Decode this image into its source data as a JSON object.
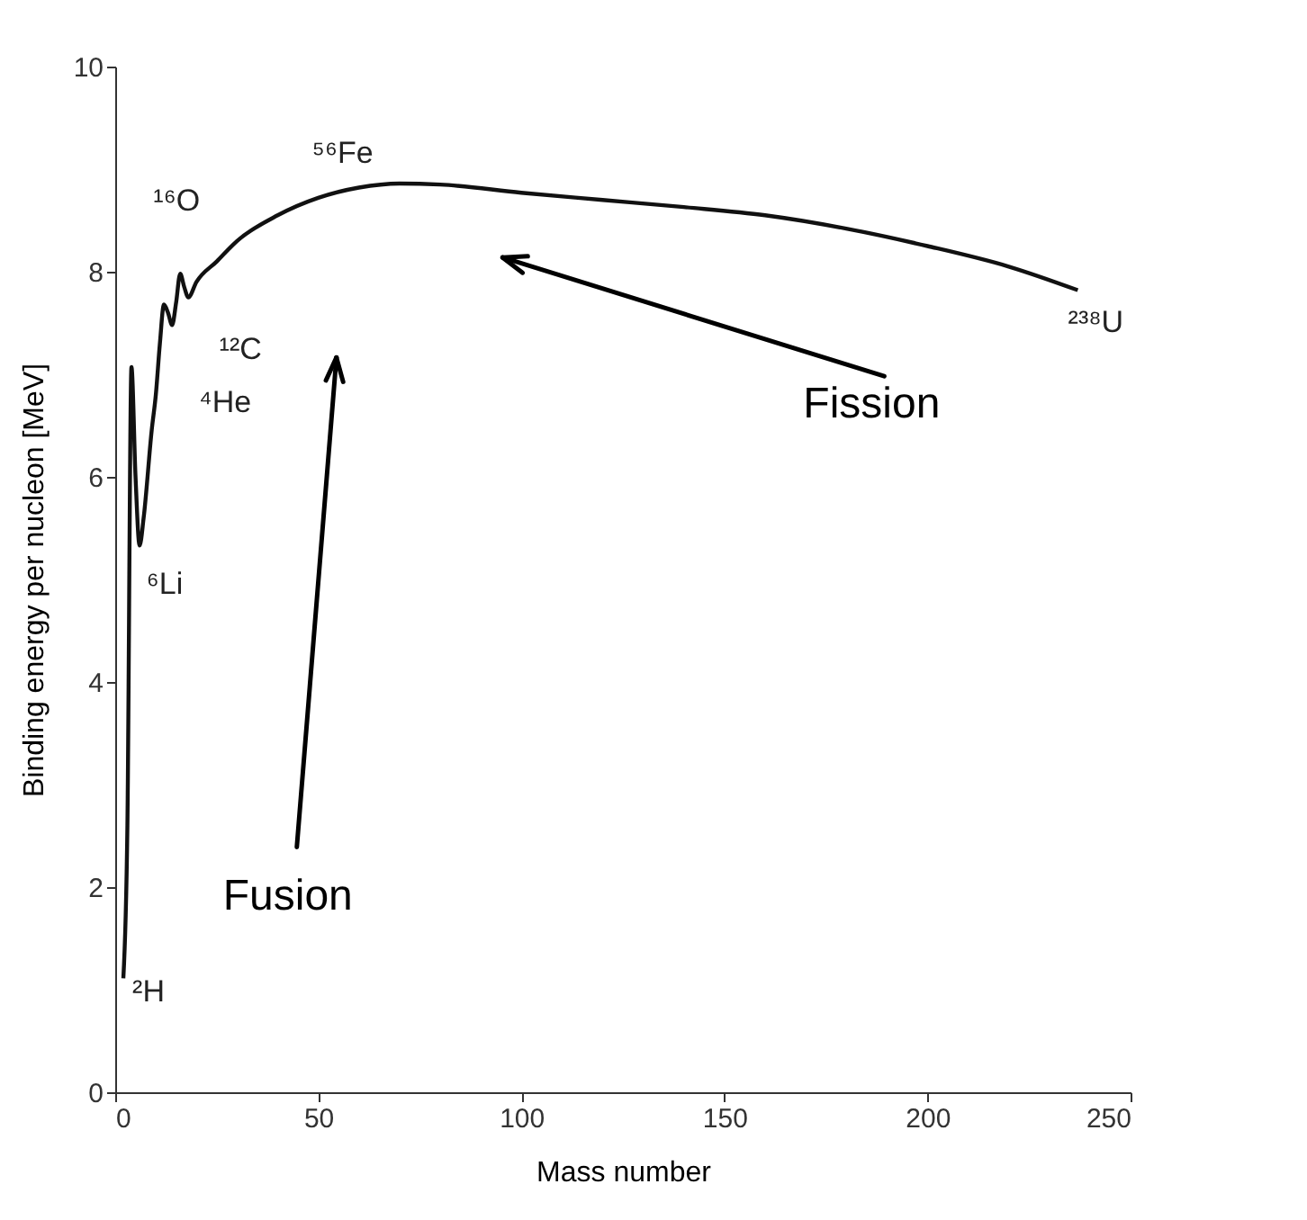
{
  "chart_data": {
    "type": "line",
    "xlabel": "Mass number",
    "ylabel": "Binding energy per nucleon [MeV]",
    "x": [
      2,
      3,
      4,
      5,
      6,
      7,
      9,
      10,
      11,
      12,
      13,
      14,
      15,
      16,
      17,
      18,
      20,
      25,
      30,
      40,
      50,
      60,
      70,
      80,
      100,
      120,
      140,
      160,
      180,
      200,
      220,
      237
    ],
    "values": [
      1.11,
      2.6,
      7.07,
      6.0,
      5.33,
      5.6,
      6.46,
      6.8,
      7.3,
      7.68,
      7.6,
      7.48,
      7.7,
      7.98,
      7.85,
      7.75,
      7.9,
      8.1,
      8.3,
      8.55,
      8.72,
      8.82,
      8.86,
      8.85,
      8.77,
      8.7,
      8.63,
      8.55,
      8.42,
      8.25,
      8.05,
      7.82
    ],
    "color": "#111111",
    "line_style": "solid",
    "marker": "none",
    "xlim": [
      0,
      250
    ],
    "ylim": [
      0,
      10
    ],
    "xticks": [
      0,
      50,
      100,
      150,
      200,
      250
    ],
    "yticks": [
      0,
      2,
      4,
      6,
      8,
      10
    ],
    "grid": false,
    "annotations": [
      {
        "text": "²H",
        "x": 2,
        "y": 1.11
      },
      {
        "text": "⁶Li",
        "x": 6,
        "y": 5.33
      },
      {
        "text": "⁴He",
        "x": 4,
        "y": 7.07
      },
      {
        "text": "¹²C",
        "x": 14,
        "y": 7.48
      },
      {
        "text": "¹⁶O",
        "x": 16,
        "y": 7.98
      },
      {
        "text": "⁵⁶Fe",
        "x": 56,
        "y": 8.8
      },
      {
        "text": "²³⁸U",
        "x": 237,
        "y": 7.82
      },
      "Fusion",
      "Fission"
    ]
  }
}
